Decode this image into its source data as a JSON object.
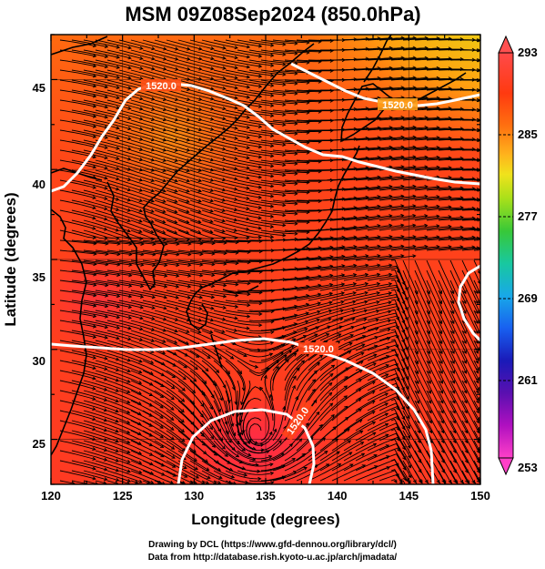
{
  "title": "MSM 09Z08Sep2024 (850.0hPa)",
  "x_axis_label": "Longitude (degrees)",
  "y_axis_label": "Latitude  (degrees)",
  "x_ticks": [
    "120",
    "125",
    "130",
    "135",
    "140",
    "145",
    "150"
  ],
  "y_ticks": [
    "25",
    "30",
    "35",
    "40",
    "45"
  ],
  "colorbar": {
    "ticks": [
      "293",
      "285",
      "277",
      "269",
      "261",
      "253"
    ],
    "colors": [
      "#ff5050",
      "#ff3a1a",
      "#ff7a10",
      "#ffb020",
      "#f2e21c",
      "#9ee01a",
      "#3acb3a",
      "#18c896",
      "#1aa8e0",
      "#1a5ff0",
      "#1a1ab4",
      "#6a10b4",
      "#c010c0",
      "#ff40c0"
    ]
  },
  "contour_labels": [
    "1520.0",
    "1520.0",
    "1520.0",
    "1520.0"
  ],
  "credits": {
    "line1": "Drawing by DCL (https://www.gfd-dennou.org/library/dcl/)",
    "line2": "Data from http://database.rish.kyoto-u.ac.jp/arch/jmadata/"
  },
  "chart_data": {
    "type": "map",
    "variable_colors": "temperature (K)",
    "level": "850.0hPa",
    "xlim": [
      120,
      150
    ],
    "ylim": [
      22.5,
      47.5
    ],
    "colorbar_range": [
      253,
      293
    ],
    "contours": "geopotential height 1520.0 (white)",
    "overlay": "wind streamlines"
  }
}
